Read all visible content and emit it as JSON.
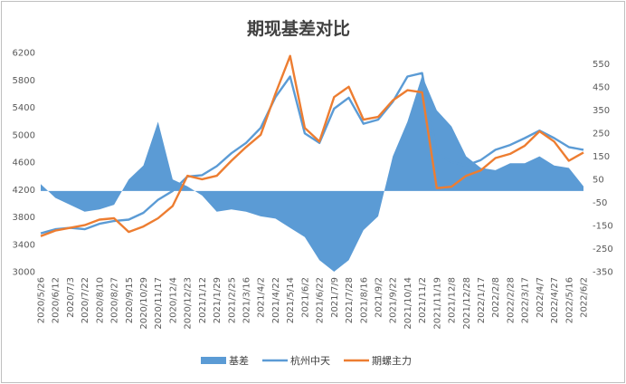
{
  "chart_data": {
    "type": "line",
    "title": "期现基差对比",
    "x_dates": [
      "2020/5/26",
      "2020/6/12",
      "2020/7/3",
      "2020/7/22",
      "2020/8/10",
      "2020/8/27",
      "2020/9/15",
      "2020/10/29",
      "2020/11/17",
      "2020/12/4",
      "2020/12/23",
      "2021/1/12",
      "2021/1/29",
      "2021/2/25",
      "2021/3/16",
      "2021/4/2",
      "2021/4/22",
      "2021/5/14",
      "2021/6/2",
      "2021/6/22",
      "2021/7/9",
      "2021/7/28",
      "2021/8/16",
      "2021/9/2",
      "2021/9/22",
      "2021/10/14",
      "2021/11/2",
      "2021/11/19",
      "2021/12/8",
      "2021/12/28",
      "2022/1/17",
      "2022/2/8",
      "2022/2/28",
      "2022/3/17",
      "2022/4/7",
      "2022/4/27",
      "2022/5/16",
      "2022/6/2"
    ],
    "y_left": {
      "min": 3000,
      "max": 6200,
      "ticks": [
        3000,
        3400,
        3800,
        4200,
        4600,
        5000,
        5400,
        5800,
        6200
      ]
    },
    "y_right": {
      "min": -350,
      "max": 600,
      "ticks": [
        -350,
        -250,
        -150,
        -50,
        50,
        150,
        250,
        350,
        450,
        550
      ]
    },
    "grid": false,
    "legend": "bottom",
    "series": [
      {
        "name": "基差",
        "kind": "area",
        "axis": "right",
        "color": "#5b9bd5",
        "values": [
          30,
          -30,
          -60,
          -90,
          -80,
          -60,
          50,
          110,
          300,
          50,
          20,
          -20,
          -90,
          -80,
          -90,
          -110,
          -120,
          -160,
          -200,
          -300,
          -350,
          -300,
          -170,
          -110,
          150,
          300,
          500,
          350,
          280,
          150,
          100,
          90,
          120,
          120,
          150,
          110,
          100,
          20
        ]
      },
      {
        "name": "杭州中天",
        "kind": "line",
        "axis": "left",
        "color": "#5b9bd5",
        "values": [
          3560,
          3620,
          3640,
          3620,
          3700,
          3740,
          3760,
          3860,
          4050,
          4180,
          4390,
          4410,
          4540,
          4730,
          4880,
          5100,
          5550,
          5850,
          5020,
          4880,
          5380,
          5540,
          5160,
          5220,
          5480,
          5850,
          5900,
          4740,
          4600,
          4550,
          4630,
          4780,
          4850,
          4950,
          5060,
          4950,
          4820,
          4780
        ]
      },
      {
        "name": "期螺主力",
        "kind": "line",
        "axis": "left",
        "color": "#ed7d31",
        "values": [
          3520,
          3600,
          3640,
          3680,
          3760,
          3780,
          3580,
          3660,
          3780,
          3960,
          4400,
          4350,
          4400,
          4620,
          4820,
          5000,
          5600,
          6150,
          5100,
          4900,
          5550,
          5700,
          5220,
          5260,
          5500,
          5650,
          5620,
          4220,
          4240,
          4400,
          4480,
          4660,
          4720,
          4840,
          5050,
          4900,
          4620,
          4740
        ]
      }
    ]
  }
}
